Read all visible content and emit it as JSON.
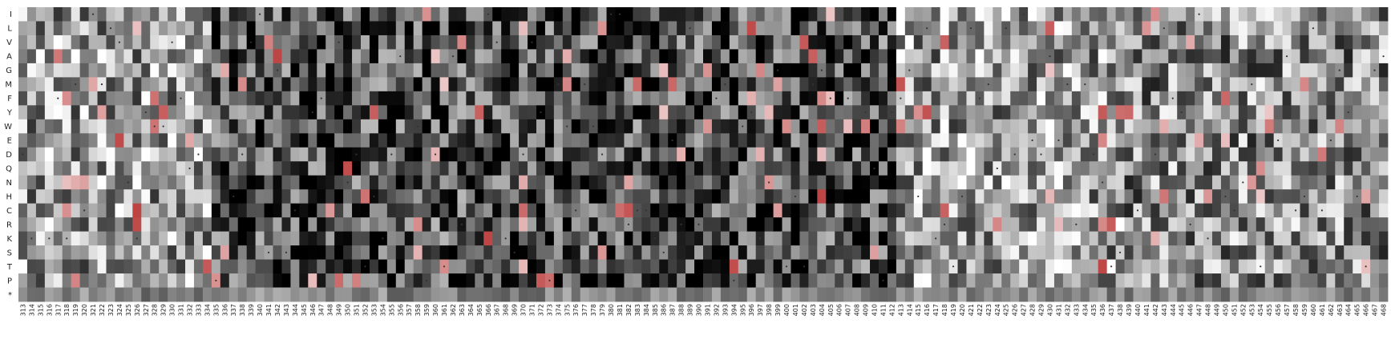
{
  "chart_data": {
    "type": "heatmap",
    "title": "",
    "xlabel": "",
    "ylabel": "",
    "x_start": 313,
    "x_end": 468,
    "rows": [
      "I",
      "L",
      "V",
      "A",
      "G",
      "M",
      "F",
      "Y",
      "W",
      "E",
      "D",
      "Q",
      "N",
      "H",
      "C",
      "R",
      "K",
      "S",
      "T",
      "P",
      "*"
    ],
    "color_scale": {
      "low": "#000000",
      "mid": "#ffffff",
      "high": "#b22222"
    },
    "marker_symbol": "•",
    "values_note": "Individual cell values are not printed on the chart; they are rendered with an estimated grayscale-to-red colour scale."
  },
  "colors": {
    "background": "#ffffff",
    "tick_text": "#222222",
    "marker": "#333333",
    "stop_row_fill": "#9a9a9a"
  }
}
